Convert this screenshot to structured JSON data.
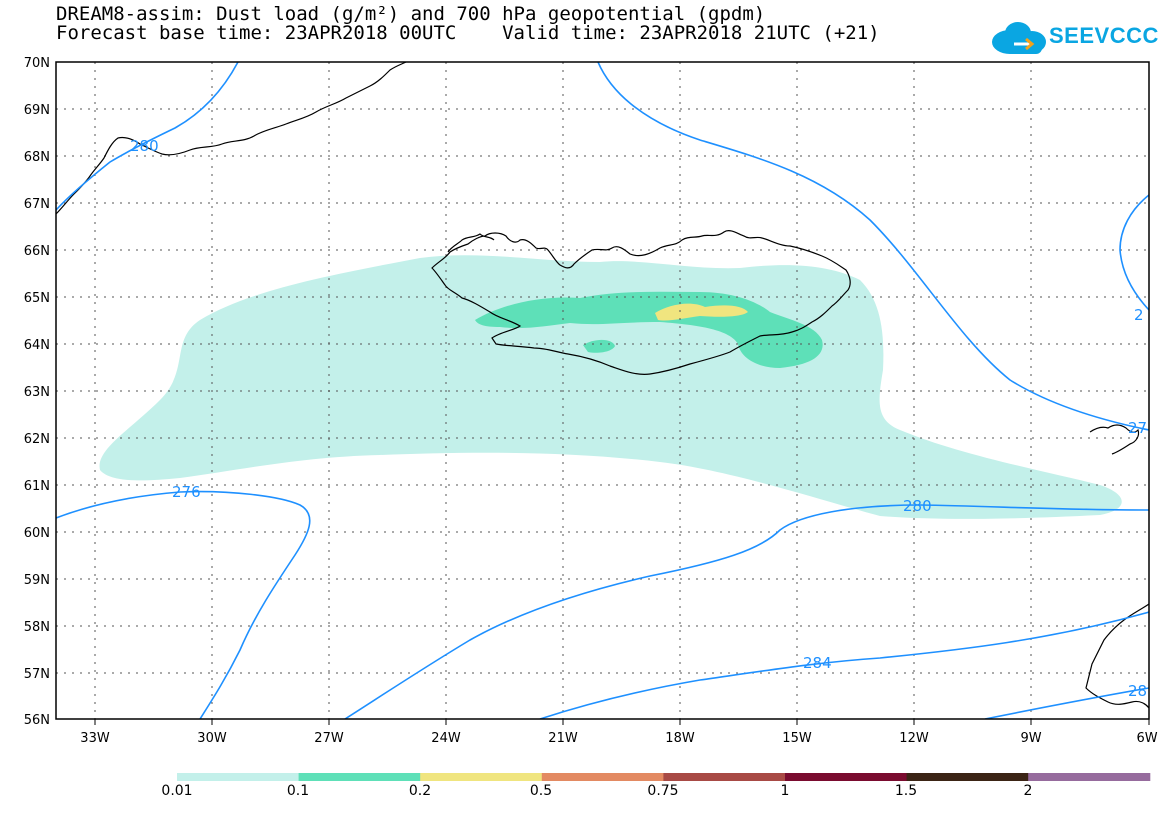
{
  "title": {
    "line1": "DREAM8-assim: Dust load (g/m²) and 700 hPa geopotential (gpdm)",
    "line2": "Forecast base time: 23APR2018 00UTC    Valid time: 23APR2018 21UTC (+21)"
  },
  "logo": {
    "text": "SEEVCCC",
    "color": "#0aa6e2"
  },
  "map": {
    "lat_labels": [
      "70N",
      "69N",
      "68N",
      "67N",
      "66N",
      "65N",
      "64N",
      "63N",
      "62N",
      "61N",
      "60N",
      "59N",
      "58N",
      "57N",
      "56N"
    ],
    "lon_labels": [
      "33W",
      "30W",
      "27W",
      "24W",
      "21W",
      "18W",
      "15W",
      "12W",
      "9W",
      "6W"
    ],
    "lat_range": [
      56,
      70
    ],
    "lon_range": [
      -34,
      -6
    ],
    "gridlines": "dotted",
    "contour_labels": [
      "280",
      "276",
      "280",
      "284",
      "2",
      "27",
      "28"
    ],
    "contour_color": "#1e90ff"
  },
  "colorbar": {
    "labels": [
      "0.01",
      "0.1",
      "0.2",
      "0.5",
      "0.75",
      "1",
      "1.5",
      "2"
    ],
    "colors": [
      "#c3f0ea",
      "#5ee0b8",
      "#f0e57f",
      "#e38a62",
      "#a84a45",
      "#7a0b2f",
      "#3b2415",
      "#966b9d"
    ]
  }
}
